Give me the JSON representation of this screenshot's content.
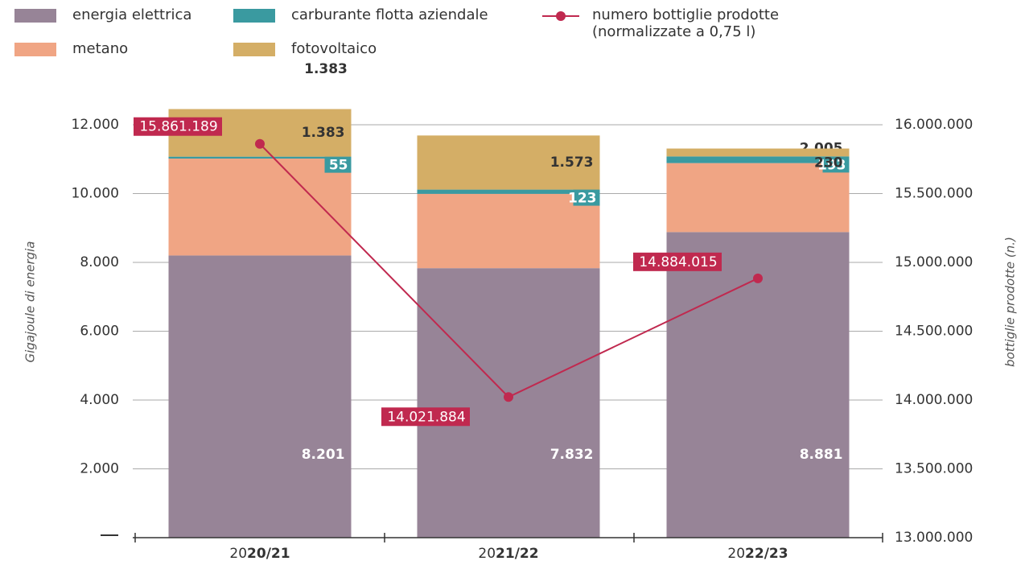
{
  "chart_data": {
    "type": "bar",
    "stacked": true,
    "categories": [
      "2020/21",
      "2021/22",
      "2022/23"
    ],
    "series": [
      {
        "name": "energia elettrica",
        "color": "#978497",
        "values": [
          8201,
          7832,
          8881
        ],
        "value_labels": [
          "8.201",
          "7.832",
          "8.881"
        ]
      },
      {
        "name": "metano",
        "color": "#f0a584",
        "values": [
          2817,
          2160,
          2005
        ],
        "value_labels": [
          "2.817",
          "2.160",
          "2.005"
        ]
      },
      {
        "name": "carburante flotta aziendale",
        "color": "#3a9aa0",
        "values": [
          55,
          123,
          193
        ]
      },
      {
        "name": "fotovoltaico",
        "color": "#d4ae66",
        "values": [
          1383,
          1573,
          230
        ],
        "value_labels": [
          "1.383",
          "1.573",
          "230"
        ]
      },
      {
        "name": "numero bottiglie prodotte (normalizzate a 0,75 l)",
        "type": "line",
        "axis": "y2",
        "color": "#c0294f",
        "values": [
          15861189,
          14021884,
          14884015
        ],
        "value_labels": [
          "15.861.189",
          "14.021.884",
          "14.884.015"
        ]
      }
    ],
    "ylabel": "Gigajoule di energia",
    "y2label": "bottiglie prodotte (n.)",
    "ylim": [
      0,
      12000
    ],
    "yticks": [
      {
        "value": 2000,
        "label": "2.000"
      },
      {
        "value": 4000,
        "label": "4.000"
      },
      {
        "value": 6000,
        "label": "6.000"
      },
      {
        "value": 8000,
        "label": "8.000"
      },
      {
        "value": 10000,
        "label": "10.000"
      },
      {
        "value": 12000,
        "label": "12.000"
      }
    ],
    "y2lim": [
      13000000,
      16000000
    ],
    "y2ticks": [
      {
        "value": 13000000,
        "label": "13.000.000"
      },
      {
        "value": 13500000,
        "label": "13.500.000"
      },
      {
        "value": 14000000,
        "label": "14.000.000"
      },
      {
        "value": 14500000,
        "label": "14.500.000"
      },
      {
        "value": 15000000,
        "label": "15.000.000"
      },
      {
        "value": 15500000,
        "label": "15.500.000"
      },
      {
        "value": 16000000,
        "label": "16.000.000"
      }
    ],
    "grid": true
  }
}
